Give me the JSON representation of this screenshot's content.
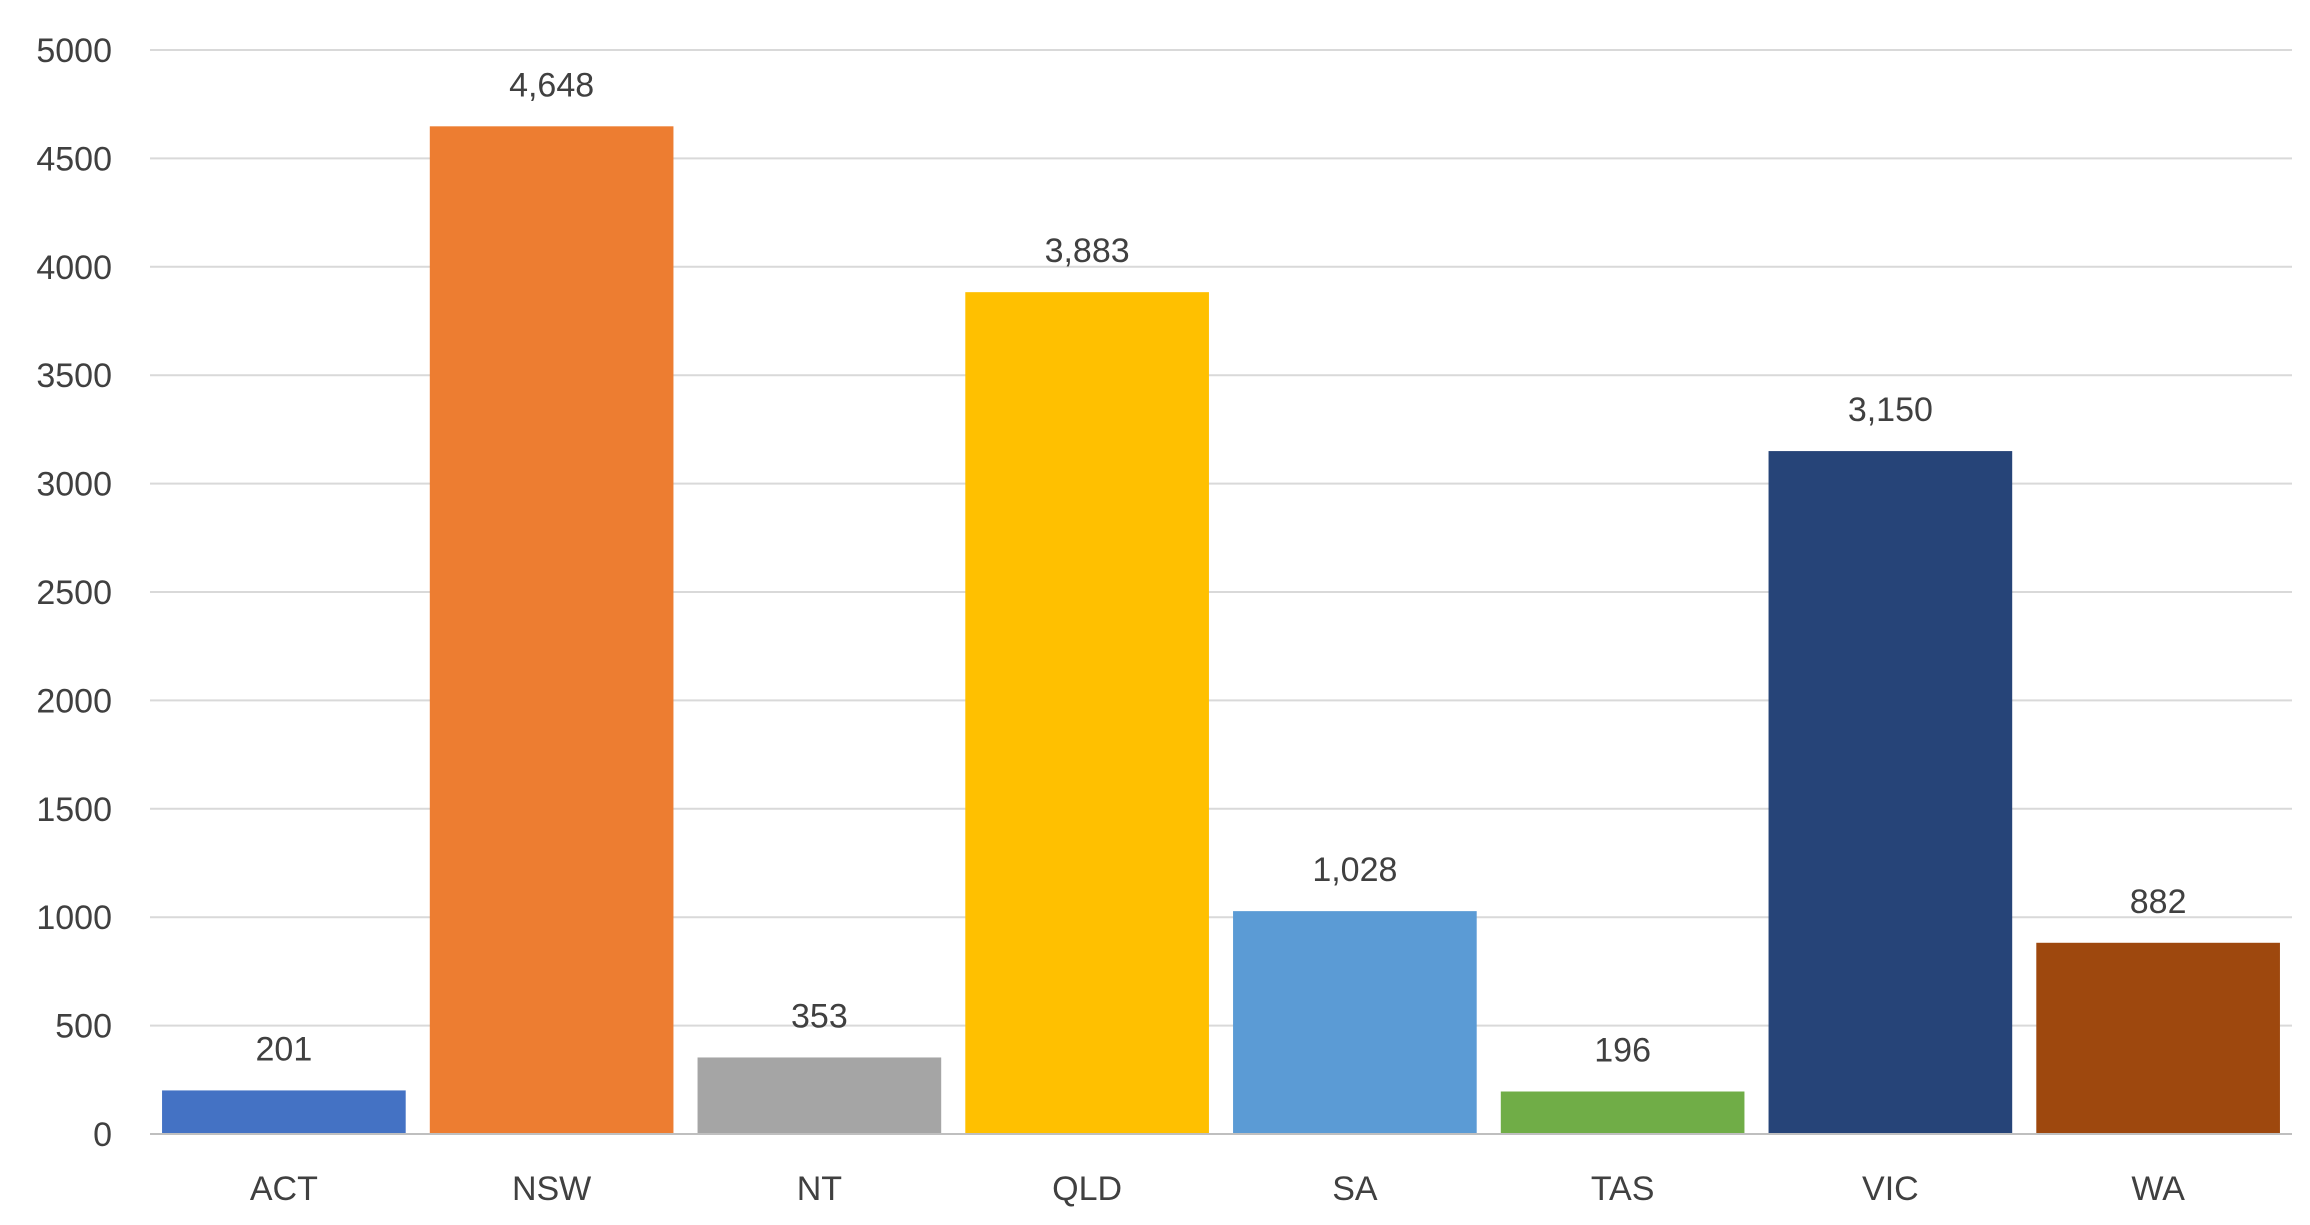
{
  "chart_data": {
    "type": "bar",
    "title": "",
    "xlabel": "",
    "ylabel": "",
    "categories": [
      "ACT",
      "NSW",
      "NT",
      "QLD",
      "SA",
      "TAS",
      "VIC",
      "WA"
    ],
    "values": [
      201,
      4648,
      353,
      3883,
      1028,
      196,
      3150,
      882
    ],
    "value_labels": [
      "201",
      "4,648",
      "353",
      "3,883",
      "1,028",
      "196",
      "3,150",
      "882"
    ],
    "colors": [
      "#4472C4",
      "#ED7D31",
      "#A5A5A5",
      "#FFC000",
      "#5B9BD5",
      "#70AD47",
      "#264478",
      "#9E480E"
    ],
    "ylim": [
      0,
      5000
    ],
    "yticks": [
      0,
      500,
      1000,
      1500,
      2000,
      2500,
      3000,
      3500,
      4000,
      4500,
      5000
    ],
    "ytick_labels": [
      "0",
      "500",
      "1000",
      "1500",
      "2000",
      "2500",
      "3000",
      "3500",
      "4000",
      "4500",
      "5000"
    ],
    "grid": true,
    "legend": "none"
  }
}
